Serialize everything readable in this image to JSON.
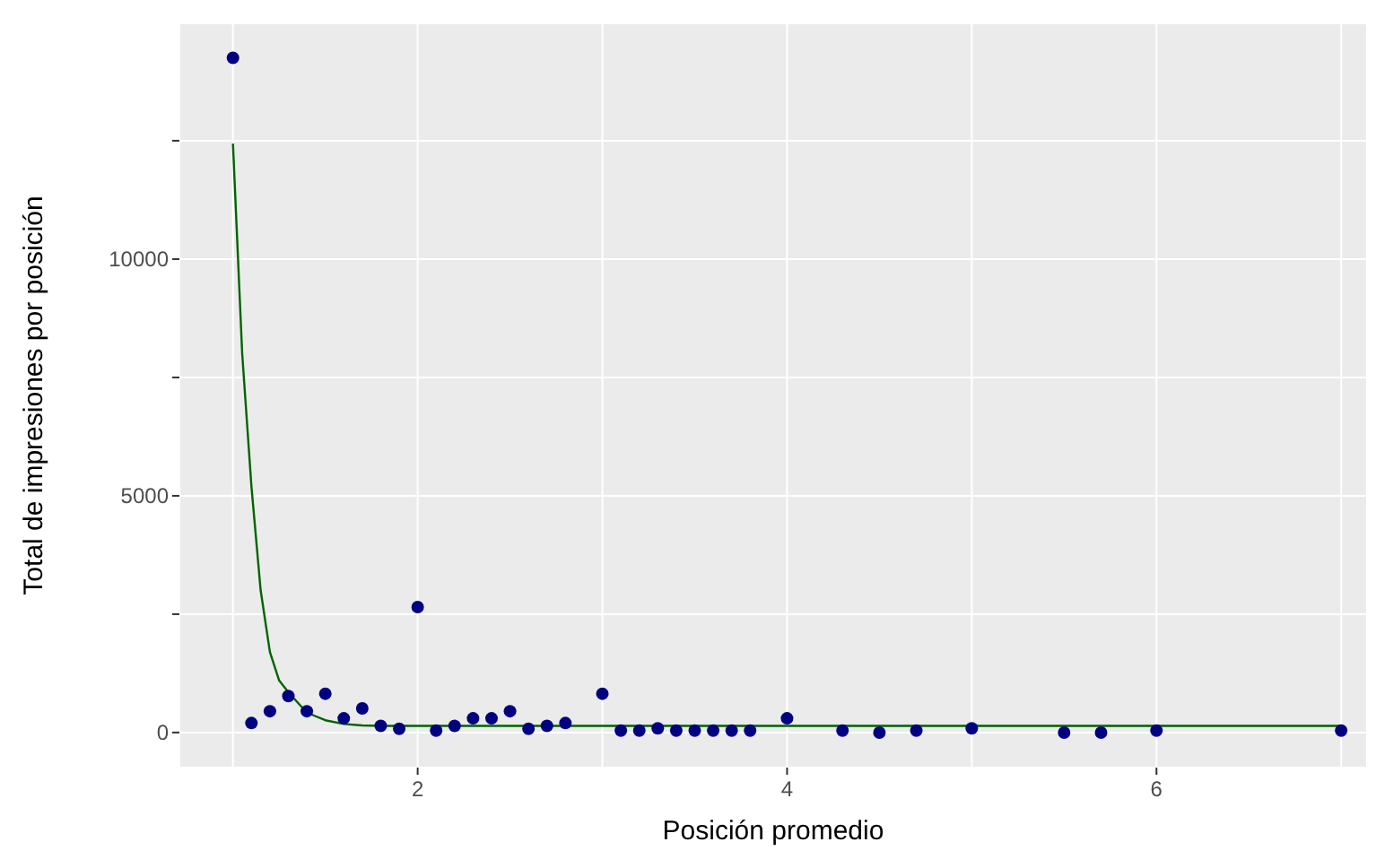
{
  "chart_data": {
    "type": "scatter",
    "xlabel": "Posición promedio",
    "ylabel": "Total de impresiones por posición",
    "xlim": [
      0.71,
      7.14
    ],
    "ylim": [
      -740,
      14980
    ],
    "xticks": [
      {
        "value": 1,
        "label": null
      },
      2,
      {
        "value": 3,
        "label": null
      },
      4,
      {
        "value": 5,
        "label": null
      },
      6,
      {
        "value": 7,
        "label": null
      }
    ],
    "yticks": [
      0,
      {
        "value": 2500,
        "label": null
      },
      5000,
      {
        "value": 7500,
        "label": null
      },
      10000,
      {
        "value": 12500,
        "label": null
      }
    ],
    "grid": true,
    "series": [
      {
        "color": "#000080",
        "marker": "circle",
        "x": [
          1.0,
          1.1,
          1.2,
          1.3,
          1.4,
          1.5,
          1.6,
          1.7,
          1.8,
          1.9,
          2.0,
          2.1,
          2.2,
          2.3,
          2.4,
          2.5,
          2.6,
          2.7,
          2.8,
          3.0,
          3.1,
          3.2,
          3.3,
          3.4,
          3.5,
          3.6,
          3.7,
          3.8,
          4.0,
          4.3,
          4.5,
          4.7,
          5.0,
          5.5,
          5.7,
          6.0,
          7.0
        ],
        "values": [
          14250,
          200,
          450,
          770,
          450,
          820,
          300,
          510,
          140,
          80,
          2650,
          40,
          140,
          300,
          300,
          450,
          80,
          140,
          200,
          820,
          40,
          40,
          90,
          40,
          40,
          40,
          40,
          40,
          300,
          40,
          0,
          40,
          90,
          0,
          0,
          40,
          40
        ]
      },
      {
        "type": "line",
        "color": "#006400",
        "marker": "none",
        "x": [
          1.0,
          1.05,
          1.1,
          1.15,
          1.2,
          1.25,
          1.3,
          1.4,
          1.5,
          1.6,
          1.7,
          1.8,
          2.0,
          7.0
        ],
        "values": [
          12440,
          8000,
          5200,
          3000,
          1700,
          1100,
          850,
          420,
          260,
          180,
          150,
          140,
          140,
          140
        ]
      }
    ]
  }
}
